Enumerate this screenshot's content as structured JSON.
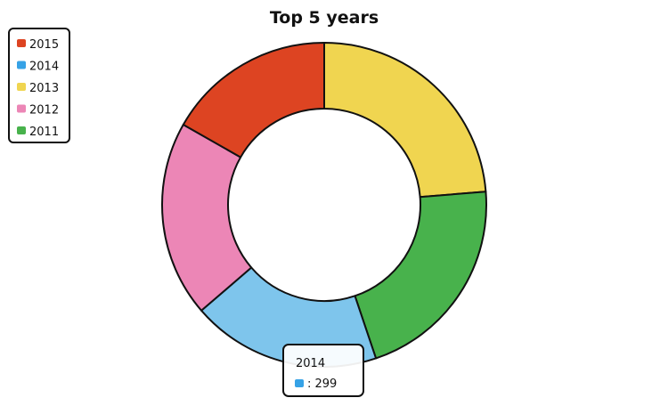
{
  "chart_data": {
    "type": "pie",
    "variant": "donut",
    "title": "Top 5 years",
    "categories": [
      "2015",
      "2014",
      "2013",
      "2012",
      "2011"
    ],
    "values": [
      266,
      299,
      376,
      310,
      335
    ],
    "colors": [
      "#dd4422",
      "#7ec5ec",
      "#f0d550",
      "#ec86b6",
      "#48b24c"
    ],
    "legend": {
      "placement": "top-left",
      "items": [
        {
          "label": "2015",
          "color": "#dd4422"
        },
        {
          "label": "2014",
          "color": "#36a2e6"
        },
        {
          "label": "2013",
          "color": "#f0d550"
        },
        {
          "label": "2012",
          "color": "#ec86b6"
        },
        {
          "label": "2011",
          "color": "#48b24c"
        }
      ]
    },
    "slice_order_clockwise_from_top": [
      "2013",
      "2011",
      "2014",
      "2012",
      "2015"
    ],
    "tooltip": {
      "title": "2014",
      "value_text": ": 299",
      "swatch_color": "#36a2e6"
    }
  }
}
